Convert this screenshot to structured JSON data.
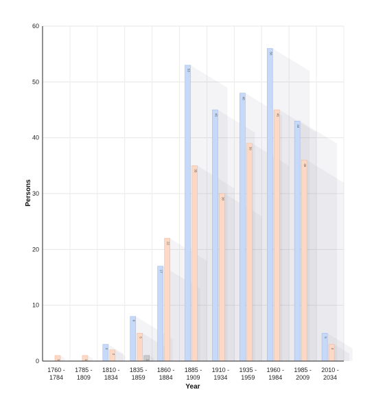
{
  "chart_data": {
    "type": "bar",
    "xlabel": "Year",
    "ylabel": "Persons",
    "ylim": [
      0,
      60
    ],
    "yticks": [
      0,
      10,
      20,
      30,
      40,
      50,
      60
    ],
    "grid": true,
    "categories": [
      [
        "1760 -",
        "1784"
      ],
      [
        "1785 -",
        "1809"
      ],
      [
        "1810 -",
        "1834"
      ],
      [
        "1835 -",
        "1859"
      ],
      [
        "1860 -",
        "1884"
      ],
      [
        "1885 -",
        "1909"
      ],
      [
        "1910 -",
        "1934"
      ],
      [
        "1935 -",
        "1959"
      ],
      [
        "1960 -",
        "1984"
      ],
      [
        "1985 -",
        "2009"
      ],
      [
        "2010 -",
        "2034"
      ]
    ],
    "series": [
      {
        "color": "#c6d9f9",
        "stroke": "#9fbdf0",
        "values": [
          0,
          0,
          3,
          8,
          17,
          53,
          45,
          48,
          56,
          43,
          5
        ]
      },
      {
        "color": "#fbd9c6",
        "stroke": "#f2b99b",
        "values": [
          1,
          1,
          2,
          5,
          22,
          35,
          30,
          39,
          45,
          36,
          3
        ]
      },
      {
        "color": "#c9c9c9",
        "stroke": "#a9a9a9",
        "values": [
          0,
          0,
          0,
          1,
          0,
          0,
          0,
          0,
          0,
          0,
          0
        ]
      }
    ]
  }
}
